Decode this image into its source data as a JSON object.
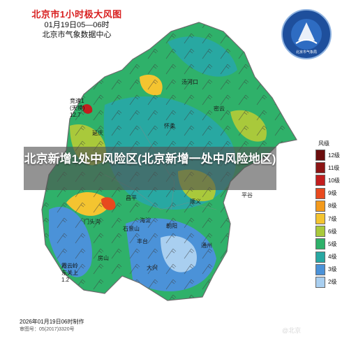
{
  "header": {
    "title": "北京市1小时极大风图",
    "time_range": "01月19日05—06时",
    "organization": "北京市气象数据中心"
  },
  "logo": {
    "name": "beijing-meteorological-service-logo",
    "caption": "北京市气象局"
  },
  "stations": [
    {
      "name": "竞速1",
      "extra": "(天摸)",
      "value": "12.7"
    },
    {
      "name": "霞云岭",
      "extra": "东关上",
      "value": "1.2"
    }
  ],
  "districts": [
    "延庆",
    "怀柔",
    "密云",
    "平谷",
    "昌平",
    "顺义",
    "门头沟",
    "海淀",
    "石景山",
    "朝阳",
    "丰台",
    "房山",
    "大兴",
    "通州",
    "汤河口"
  ],
  "banner": {
    "text": "北京新增1处中风险区(北京新增一处中风险地区)"
  },
  "legend": {
    "unit": "风级",
    "items": [
      {
        "label": "12级",
        "color": "#6b0d0d"
      },
      {
        "label": "11级",
        "color": "#8c1515"
      },
      {
        "label": "10级",
        "color": "#c21e1e"
      },
      {
        "label": "9级",
        "color": "#e8491e"
      },
      {
        "label": "8级",
        "color": "#f39a1c"
      },
      {
        "label": "7级",
        "color": "#f4c430"
      },
      {
        "label": "6级",
        "color": "#a9c93b"
      },
      {
        "label": "5级",
        "color": "#2fb16a"
      },
      {
        "label": "4级",
        "color": "#28a8a2"
      },
      {
        "label": "3级",
        "color": "#4b92d8"
      },
      {
        "label": "2级",
        "color": "#a9cff0"
      }
    ]
  },
  "footer": {
    "made": "2026年01月19日06时制作",
    "approval": "审图号：05(2017)3320号"
  },
  "watermark": "@北京"
}
